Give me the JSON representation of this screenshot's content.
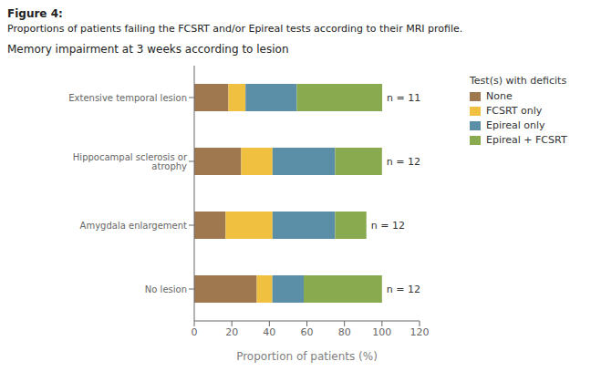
{
  "chart_data": {
    "type": "bar",
    "orientation": "horizontal",
    "stacked": true,
    "figure_title": "Figure 4:",
    "subtitle": "Proportions of patients failing the FCSRT and/or Epireal tests according to their MRI profile.",
    "title": "Memory impairment at 3 weeks according to lesion",
    "xlabel": "Proportion of patients (%)",
    "categories": [
      "Extensive temporal lesion",
      "Hippocampal sclerosis or atrophy",
      "Amygdala enlargement",
      "No lesion"
    ],
    "annotations": [
      "n = 11",
      "n = 12",
      "n = 12",
      "n = 12"
    ],
    "legend_title": "Test(s) with deficits",
    "series": [
      {
        "name": "None",
        "color": "#a07850",
        "values": [
          18.2,
          25.0,
          16.7,
          33.3
        ]
      },
      {
        "name": "FCSRT only",
        "color": "#f0c040",
        "values": [
          9.1,
          16.7,
          25.0,
          8.3
        ]
      },
      {
        "name": "Epireal only",
        "color": "#5b8fa8",
        "values": [
          27.3,
          33.3,
          33.3,
          16.7
        ]
      },
      {
        "name": "Epireal + FCSRT",
        "color": "#8aaa50",
        "values": [
          45.5,
          25.0,
          16.7,
          41.7
        ]
      }
    ],
    "xlim": [
      0,
      120
    ],
    "xticks": [
      0,
      20,
      40,
      60,
      80,
      100,
      120
    ],
    "grid": false,
    "legend": "right"
  }
}
